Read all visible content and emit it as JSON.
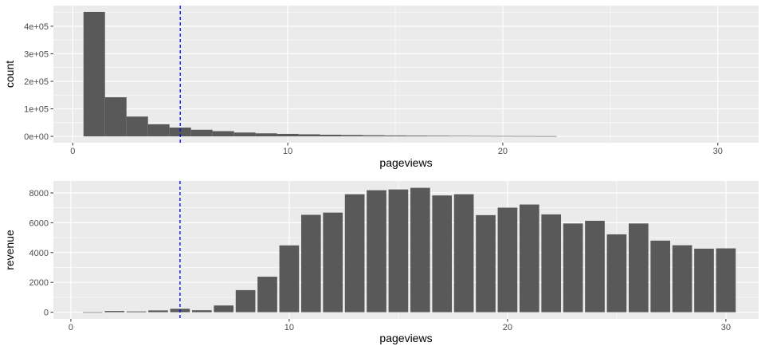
{
  "chart_data": [
    {
      "type": "bar",
      "subtype": "histogram",
      "xlabel": "pageviews",
      "ylabel": "count",
      "xlim": [
        -0.9,
        31.9
      ],
      "ylim": [
        -23000,
        475000
      ],
      "x_ticks": [
        0,
        10,
        20,
        30
      ],
      "x_tick_labels": [
        "0",
        "10",
        "20",
        "30"
      ],
      "y_ticks": [
        0,
        100000,
        200000,
        300000,
        400000
      ],
      "y_tick_labels": [
        "0e+00",
        "1e+05",
        "2e+05",
        "3e+05",
        "4e+05"
      ],
      "bin_width": 1,
      "x": [
        1,
        2,
        3,
        4,
        5,
        6,
        7,
        8,
        9,
        10,
        11,
        12,
        13,
        14,
        15,
        16,
        17,
        18,
        19,
        20,
        21,
        22
      ],
      "values": [
        452000,
        142000,
        72000,
        44000,
        32000,
        24000,
        19000,
        14000,
        11000,
        9000,
        7500,
        6000,
        5000,
        4000,
        3200,
        2700,
        2200,
        1800,
        1500,
        1200,
        1000,
        800
      ],
      "reference_line": {
        "x": 5,
        "color": "#0000ff",
        "style": "dashed"
      },
      "bar_color": "#595959",
      "panel_background": "#ebebeb",
      "grid": true
    },
    {
      "type": "bar",
      "xlabel": "pageviews",
      "ylabel": "revenue",
      "xlim": [
        -0.8,
        31.5
      ],
      "ylim": [
        -450,
        8800
      ],
      "x_ticks": [
        0,
        10,
        20,
        30
      ],
      "x_tick_labels": [
        "0",
        "10",
        "20",
        "30"
      ],
      "y_ticks": [
        0,
        2000,
        4000,
        6000,
        8000
      ],
      "y_tick_labels": [
        "0",
        "2000",
        "4000",
        "6000",
        "8000"
      ],
      "x": [
        1,
        2,
        3,
        4,
        5,
        6,
        7,
        8,
        9,
        10,
        11,
        12,
        13,
        14,
        15,
        16,
        17,
        18,
        19,
        20,
        21,
        22,
        23,
        24,
        25,
        26,
        27,
        28,
        29,
        30
      ],
      "values": [
        0,
        80,
        50,
        120,
        230,
        130,
        450,
        1480,
        2380,
        4480,
        6530,
        6680,
        7910,
        8180,
        8230,
        8340,
        7830,
        7910,
        6510,
        7010,
        7220,
        6560,
        5950,
        6130,
        5220,
        5950,
        4800,
        4490,
        4260,
        4280
      ],
      "reference_line": {
        "x": 5,
        "color": "#0000ff",
        "style": "dashed"
      },
      "bar_color": "#595959",
      "panel_background": "#ebebeb",
      "grid": true
    }
  ]
}
